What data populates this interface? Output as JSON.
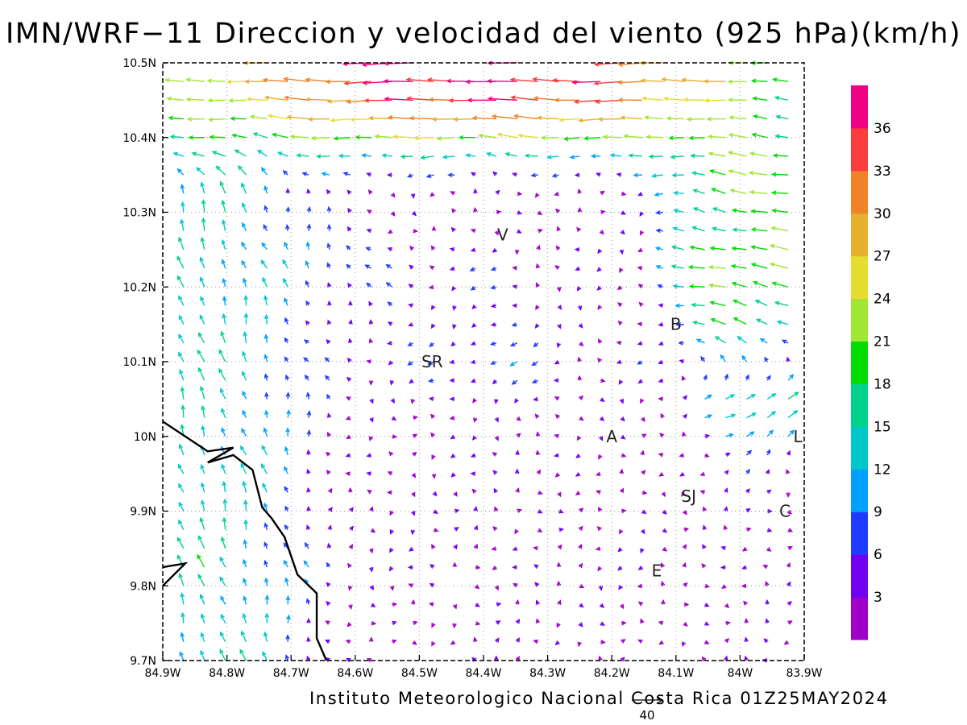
{
  "title": "IMN/WRF−11 Direccion y velocidad del viento (925 hPa)(km/h)",
  "footer": "Instituto Meteorologico Nacional Costa Rica  01Z25MAY2024",
  "reference_vector": {
    "label": "40",
    "magnitude": 40
  },
  "chart_data": {
    "type": "vector-field",
    "title": "IMN/WRF−11 Direccion y velocidad del viento (925 hPa)(km/h)",
    "xlabel": "",
    "ylabel": "",
    "xlim": [
      -84.9,
      -83.9
    ],
    "ylim": [
      9.7,
      10.5
    ],
    "x_tick_values": [
      -84.9,
      -84.8,
      -84.7,
      -84.6,
      -84.5,
      -84.4,
      -84.3,
      -84.2,
      -84.1,
      -84.0,
      -83.9
    ],
    "x_tick_labels": [
      "84.9W",
      "84.8W",
      "84.7W",
      "84.6W",
      "84.5W",
      "84.4W",
      "84.3W",
      "84.2W",
      "84.1W",
      "84W",
      "83.9W"
    ],
    "y_tick_values": [
      9.7,
      9.8,
      9.9,
      10.0,
      10.1,
      10.2,
      10.3,
      10.4,
      10.5
    ],
    "y_tick_labels": [
      "9.7N",
      "9.8N",
      "9.9N",
      "10N",
      "10.1N",
      "10.2N",
      "10.3N",
      "10.4N",
      "10.5N"
    ],
    "grid": "dotted",
    "colorbar": {
      "levels": [
        0,
        3,
        6,
        9,
        12,
        15,
        18,
        21,
        24,
        27,
        30,
        33,
        36,
        40
      ],
      "tick_labels": [
        "3",
        "6",
        "9",
        "12",
        "15",
        "18",
        "21",
        "24",
        "27",
        "30",
        "33",
        "36"
      ],
      "colors": [
        "#a000c8",
        "#7000f0",
        "#1e3cff",
        "#00a0ff",
        "#00c8c8",
        "#00d28c",
        "#00dc00",
        "#a0e632",
        "#e6dc32",
        "#e6af2d",
        "#f08228",
        "#fa3c3c",
        "#f00082"
      ],
      "placement": "right"
    },
    "station_labels": [
      {
        "label": "V",
        "lon": -84.37,
        "lat": 10.27
      },
      {
        "label": "B",
        "lon": -84.1,
        "lat": 10.15
      },
      {
        "label": "SR",
        "lon": -84.48,
        "lat": 10.1
      },
      {
        "label": "A",
        "lon": -84.2,
        "lat": 10.0
      },
      {
        "label": "L",
        "lon": -83.91,
        "lat": 10.0
      },
      {
        "label": "SJ",
        "lon": -84.08,
        "lat": 9.92
      },
      {
        "label": "C",
        "lon": -83.93,
        "lat": 9.9
      },
      {
        "label": "E",
        "lon": -84.13,
        "lat": 9.82
      }
    ],
    "coastline": [
      [
        [
          -84.9,
          10.02
        ],
        [
          -84.83,
          9.98
        ],
        [
          -84.79,
          9.985
        ],
        [
          -84.83,
          9.965
        ],
        [
          -84.79,
          9.975
        ],
        [
          -84.76,
          9.955
        ],
        [
          -84.745,
          9.905
        ],
        [
          -84.73,
          9.89
        ],
        [
          -84.71,
          9.865
        ],
        [
          -84.69,
          9.815
        ],
        [
          -84.66,
          9.79
        ],
        [
          -84.66,
          9.73
        ],
        [
          -84.645,
          9.7
        ]
      ],
      [
        [
          -84.9,
          9.825
        ],
        [
          -84.865,
          9.83
        ],
        [
          -84.9,
          9.8
        ]
      ]
    ],
    "wind_field_regions": [
      {
        "region": "north band 10.35N-10.5N",
        "direction_toward": "west",
        "speed_kmh": [
          18,
          38
        ]
      },
      {
        "region": "west coast 84.9W-84.6W",
        "direction_toward": "north-northwest",
        "speed_kmh": [
          9,
          24
        ]
      },
      {
        "region": "central valley 84.5W-84.1W",
        "direction_toward": "variable",
        "speed_kmh": [
          1,
          12
        ]
      },
      {
        "region": "east 84.0W-83.9W",
        "direction_toward": "west to northwest",
        "speed_kmh": [
          3,
          24
        ]
      }
    ]
  }
}
